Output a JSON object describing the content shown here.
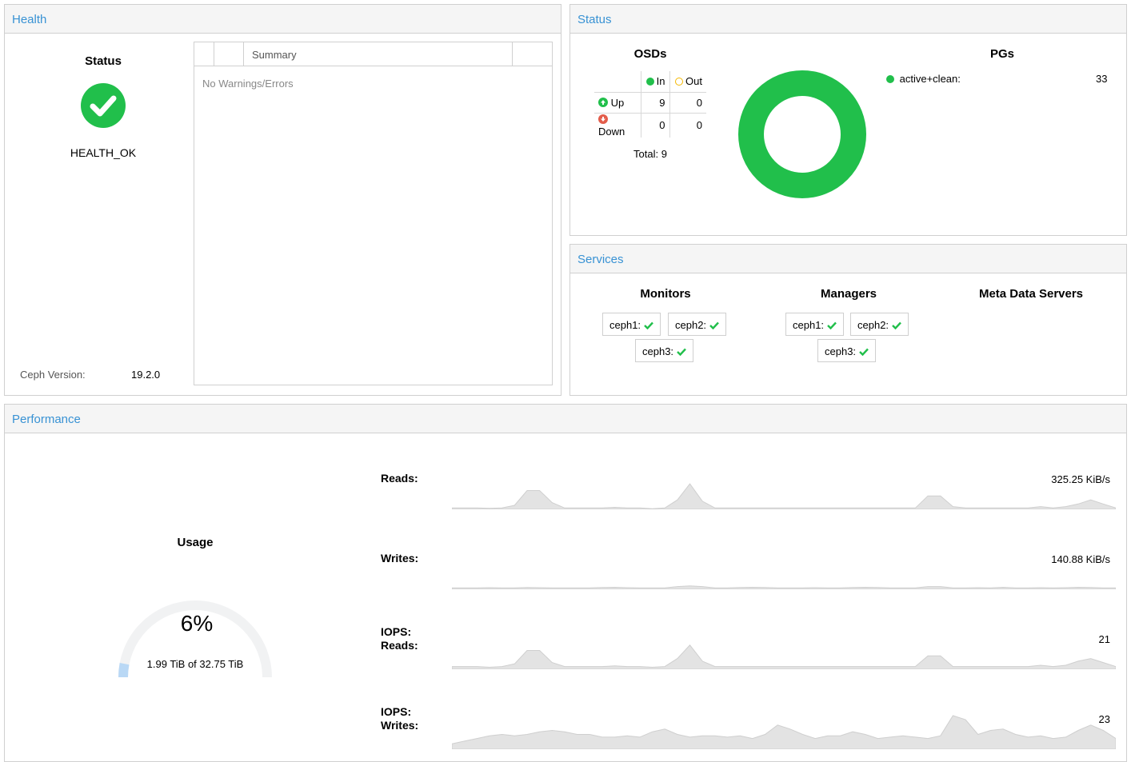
{
  "health": {
    "header": "Health",
    "status_title": "Status",
    "status_text": "HEALTH_OK",
    "ceph_version_label": "Ceph Version:",
    "ceph_version_value": "19.2.0",
    "grid_column_summary": "Summary",
    "grid_empty_text": "No Warnings/Errors",
    "ok_color": "#21bf4b"
  },
  "status": {
    "header": "Status",
    "osds_title": "OSDs",
    "col_in": "In",
    "col_out": "Out",
    "row_up": "Up",
    "row_down": "Down",
    "up_in": "9",
    "up_out": "0",
    "down_in": "0",
    "down_out": "0",
    "total": "Total: 9",
    "pgs_title": "PGs",
    "pg_states": [
      {
        "label": "active+clean:",
        "count": "33",
        "color": "#21bf4b"
      }
    ],
    "colors": {
      "in": "#21bf4b",
      "out": "#f5b800",
      "up": "#21bf4b",
      "down": "#e35d4b"
    }
  },
  "services": {
    "header": "Services",
    "monitors_title": "Monitors",
    "managers_title": "Managers",
    "mds_title": "Meta Data Servers",
    "monitors": [
      "ceph1:",
      "ceph2:",
      "ceph3:"
    ],
    "managers": [
      "ceph1:",
      "ceph2:",
      "ceph3:"
    ]
  },
  "performance": {
    "header": "Performance",
    "usage_title": "Usage",
    "usage_percent_text": "6%",
    "usage_fraction": 0.06,
    "usage_detail": "1.99 TiB of 32.75 TiB",
    "metrics": [
      {
        "label_line1": "Reads:",
        "label_line2": "",
        "value": "325.25 KiB/s",
        "samples": [
          1,
          1,
          1,
          0.8,
          1,
          3,
          14,
          14,
          5,
          1,
          1,
          1,
          1,
          1.5,
          1,
          1,
          0.5,
          1,
          7,
          19,
          6,
          1,
          1,
          1,
          1,
          1,
          1,
          1,
          1,
          1,
          1,
          1,
          1,
          1,
          1,
          1,
          1,
          1,
          10,
          10,
          2,
          1,
          1,
          1,
          1,
          1,
          1,
          2,
          1,
          2,
          4,
          7,
          4,
          1
        ]
      },
      {
        "label_line1": "Writes:",
        "label_line2": "",
        "value": "140.88 KiB/s",
        "samples": [
          1,
          1,
          1,
          1.2,
          1,
          1,
          1.3,
          1.2,
          1,
          1,
          1,
          1,
          1.3,
          1.5,
          1.2,
          1,
          1,
          1,
          2,
          2.5,
          2,
          1,
          1,
          1.3,
          1.5,
          1.3,
          1,
          1,
          1,
          1.2,
          1,
          1,
          1.3,
          1.5,
          1.3,
          1,
          1,
          1,
          2,
          2,
          1,
          1,
          1.2,
          1,
          1.5,
          1,
          1,
          1.2,
          1,
          1.2,
          1.5,
          1.3,
          1,
          1
        ]
      },
      {
        "label_line1": "IOPS:",
        "label_line2": "Reads:",
        "value": "21",
        "samples": [
          2,
          2,
          2,
          1.5,
          2,
          4,
          14,
          14,
          5,
          2,
          2,
          2,
          2,
          2.5,
          2,
          2,
          1.5,
          2,
          8,
          18,
          6,
          2,
          2,
          2,
          2,
          2,
          2,
          2,
          2,
          2,
          2,
          2,
          2,
          2,
          2,
          2,
          2,
          2,
          10,
          10,
          2,
          2,
          2,
          2,
          2,
          2,
          2,
          3,
          2,
          3,
          6,
          8,
          5,
          2
        ]
      },
      {
        "label_line1": "IOPS:",
        "label_line2": "Writes:",
        "value": "23",
        "samples": [
          4,
          6,
          8,
          10,
          11,
          10,
          11,
          13,
          14,
          13,
          11,
          11,
          9,
          9,
          10,
          9,
          13,
          15,
          11,
          9,
          10,
          10,
          9,
          10,
          8,
          11,
          18,
          15,
          11,
          8,
          10,
          10,
          13,
          11,
          8,
          9,
          10,
          9,
          8,
          10,
          25,
          22,
          11,
          14,
          15,
          11,
          9,
          10,
          8,
          9,
          14,
          18,
          14,
          8
        ]
      }
    ],
    "chart_fill": "#e3e3e3",
    "chart_line": "#cfcfcf"
  }
}
